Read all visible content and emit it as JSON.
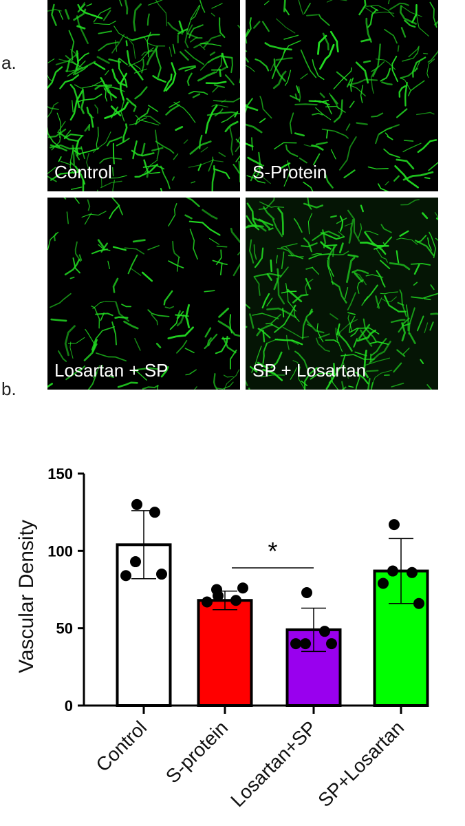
{
  "figure": {
    "label_a": "a.",
    "label_b": "b."
  },
  "micrographs": [
    {
      "caption": "Control",
      "vessel_color": "#22dd22"
    },
    {
      "caption": "S-Protein",
      "vessel_color": "#22dd22"
    },
    {
      "caption": "Losartan + SP",
      "vessel_color": "#22dd22"
    },
    {
      "caption": "SP + Losartan",
      "vessel_color": "#22dd22"
    }
  ],
  "chart_data": {
    "type": "bar",
    "title": "",
    "xlabel": "",
    "ylabel": "Vascular Density",
    "ylim": [
      0,
      150
    ],
    "yticks": [
      0,
      50,
      100,
      150
    ],
    "categories": [
      "Control",
      "S-protein",
      "Losartan+SP",
      "SP+Losartan"
    ],
    "values": [
      104,
      68,
      49,
      87
    ],
    "error": [
      22,
      6,
      14,
      21
    ],
    "points": [
      [
        130,
        125,
        93,
        84,
        85
      ],
      [
        71,
        68,
        75,
        67,
        76
      ],
      [
        73,
        48,
        40,
        40,
        40
      ],
      [
        117,
        86,
        87,
        79,
        66
      ]
    ],
    "colors": [
      "#ffffff",
      "#ff0000",
      "#9900ee",
      "#00ff00"
    ],
    "significance": {
      "from": "S-protein",
      "to": "Losartan+SP",
      "label": "*"
    },
    "grid": false,
    "legend": "none"
  }
}
